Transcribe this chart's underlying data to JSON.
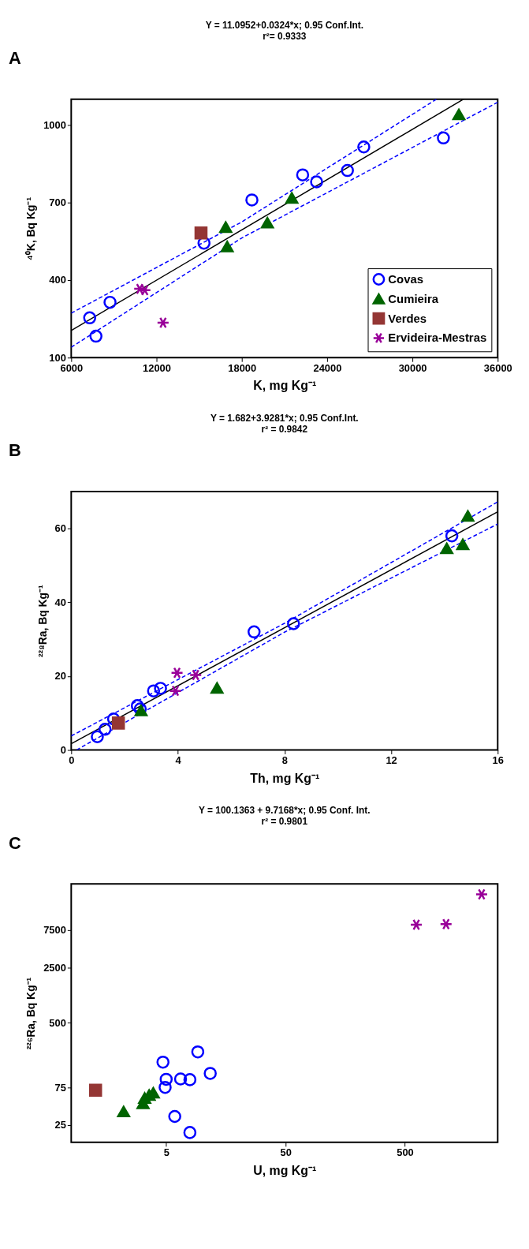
{
  "chart_data": [
    {
      "type": "scatter",
      "title": "Y = 11.0952+0.0324*x; 0.95 Conf.Int.",
      "subtitle": "r²= 0.9333",
      "annotations": [
        "A"
      ],
      "xlabel": "K, mg Kg⁻¹",
      "ylabel": "⁴⁰K, Bq Kg⁻¹",
      "xlim": [
        6000,
        36000
      ],
      "xticks": [
        6000,
        12000,
        18000,
        24000,
        30000,
        36000
      ],
      "ylim": [
        100,
        1100
      ],
      "yticks": [
        100,
        400,
        700,
        1000
      ],
      "grid": false,
      "legend": "bottom right",
      "series": [
        {
          "type": "line",
          "color": "#000000",
          "line_style": "solid",
          "x": [
            6000,
            33600
          ],
          "values": [
            205,
            1100
          ]
        },
        {
          "type": "line",
          "color": "#0000ff",
          "line_style": "dashed",
          "x": [
            6000,
            18000,
            31700
          ],
          "values": [
            272,
            625,
            1100
          ]
        },
        {
          "type": "line",
          "color": "#0000ff",
          "line_style": "dashed",
          "x": [
            6000,
            18000,
            36000
          ],
          "values": [
            140,
            563,
            1088
          ]
        },
        {
          "name": "Covas",
          "color": "#0000ff",
          "marker": "circle",
          "x": [
            7300,
            7740,
            8730,
            15340,
            18710,
            22280,
            23260,
            25430,
            26580,
            32180
          ],
          "values": [
            254,
            183,
            314,
            543,
            710,
            807,
            780,
            824,
            915,
            950
          ]
        },
        {
          "name": "Cumieira",
          "color": "#006400",
          "marker": "triangle",
          "x": [
            16870,
            16970,
            19800,
            21520,
            33270
          ],
          "values": [
            605,
            530,
            622,
            718,
            1041
          ]
        },
        {
          "name": "Verdes",
          "color": "#943634",
          "marker": "square",
          "x": [
            15130
          ],
          "values": [
            582
          ]
        },
        {
          "name": "Ervideira-Mestras",
          "color": "#990099",
          "marker": "cross",
          "x": [
            10820,
            11180,
            12460
          ],
          "values": [
            366,
            361,
            235
          ]
        }
      ]
    },
    {
      "type": "scatter",
      "title": "Y = 1.682+3.9281*x; 0.95 Conf.Int.",
      "subtitle": "r² = 0.9842",
      "annotations": [
        "B"
      ],
      "xlabel": "Th, mg Kg⁻¹",
      "ylabel": "²²⁸Ra, Bq Kg⁻¹",
      "xlim": [
        0,
        16
      ],
      "xticks": [
        0,
        4,
        8,
        12,
        16
      ],
      "ylim": [
        0,
        70
      ],
      "yticks": [
        0,
        20,
        40,
        60
      ],
      "grid": false,
      "series": [
        {
          "type": "line",
          "color": "#000000",
          "line_style": "solid",
          "x": [
            0,
            16
          ],
          "values": [
            1.7,
            64.5
          ]
        },
        {
          "type": "line",
          "color": "#0000ff",
          "line_style": "dashed",
          "x": [
            0,
            8,
            16
          ],
          "values": [
            3.8,
            34.3,
            67.2
          ]
        },
        {
          "type": "line",
          "color": "#0000ff",
          "line_style": "dashed",
          "x": [
            0.2,
            8,
            16
          ],
          "values": [
            0,
            31.9,
            61.2
          ]
        },
        {
          "color": "#0000ff",
          "marker": "circle",
          "x": [
            0.98,
            1.27,
            1.59,
            2.48,
            2.59,
            3.09,
            3.35,
            6.86,
            8.34,
            14.28
          ],
          "values": [
            3.6,
            5.6,
            8.4,
            12.0,
            11.1,
            16.0,
            16.7,
            32.0,
            34.2,
            58.0
          ]
        },
        {
          "color": "#006400",
          "marker": "triangle",
          "x": [
            2.62,
            5.47,
            14.09,
            14.69,
            14.88
          ],
          "values": [
            10.7,
            16.8,
            54.6,
            55.7,
            63.4
          ]
        },
        {
          "color": "#943634",
          "marker": "square",
          "x": [
            1.77
          ],
          "values": [
            7.3
          ]
        },
        {
          "color": "#990099",
          "marker": "cross",
          "x": [
            3.97,
            4.67,
            3.91
          ],
          "values": [
            20.9,
            20.3,
            16.0
          ]
        }
      ]
    },
    {
      "type": "scatter",
      "title": "Y = 100.1363 + 9.7168*x; 0.95 Conf. Int.",
      "subtitle": "r² = 0.9801",
      "annotations": [
        "C"
      ],
      "xlabel": "U, mg Kg⁻¹",
      "ylabel": "²²⁶Ra, Bq Kg⁻¹",
      "log": "xy",
      "xlim": [
        0.8,
        3000
      ],
      "xticks": [
        5,
        50,
        500
      ],
      "ylim": [
        15,
        29000
      ],
      "yticks": [
        25,
        75,
        500,
        2500,
        7500
      ],
      "grid": false,
      "series": [
        {
          "color": "#0000ff",
          "marker": "circle",
          "x": [
            4.7,
            9.2,
            5.0,
            6.6,
            7.9,
            11.7,
            4.9,
            5.9,
            7.9
          ],
          "values": [
            157,
            212,
            95,
            96,
            94,
            113,
            75,
            32,
            20
          ]
        },
        {
          "color": "#006400",
          "marker": "triangle",
          "x": [
            2.2,
            3.2,
            3.3,
            3.6,
            3.9
          ],
          "values": [
            37,
            47,
            55,
            60,
            64
          ]
        },
        {
          "color": "#943634",
          "marker": "square",
          "x": [
            1.28
          ],
          "values": [
            69
          ]
        },
        {
          "color": "#990099",
          "marker": "cross",
          "x": [
            624,
            1107,
            2200
          ],
          "values": [
            8790,
            8930,
            21400
          ]
        }
      ]
    }
  ]
}
